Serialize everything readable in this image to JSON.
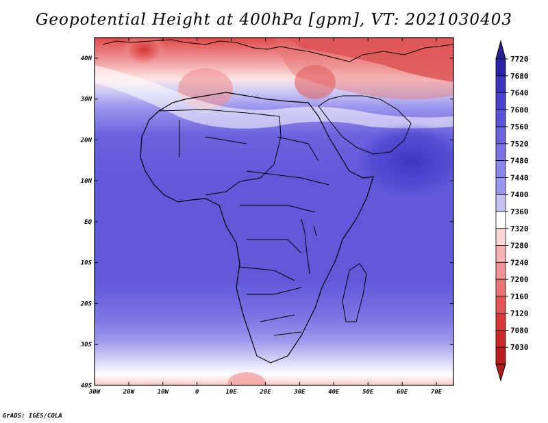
{
  "title": "Geopotential Height at 400hPa [gpm], VT: 2021030403",
  "credit": "GrADS: IGES/COLA",
  "map": {
    "lon_ticks": [
      "30W",
      "20W",
      "10W",
      "0",
      "10E",
      "20E",
      "30E",
      "40E",
      "50E",
      "60E",
      "70E"
    ],
    "lat_ticks": [
      "40N",
      "30N",
      "20N",
      "10N",
      "EQ",
      "10S",
      "20S",
      "30S",
      "40S"
    ],
    "lon_range": [
      -30,
      75
    ],
    "lat_range": [
      -40,
      45
    ]
  },
  "colorbar": {
    "levels": [
      "7720",
      "7680",
      "7640",
      "7600",
      "7560",
      "7520",
      "7480",
      "7440",
      "7400",
      "7360",
      "7320",
      "7280",
      "7240",
      "7200",
      "7160",
      "7120",
      "7080",
      "7030"
    ],
    "colors": [
      "#2a23a6",
      "#3b34bd",
      "#4b43cc",
      "#5a52d8",
      "#6a62de",
      "#7a73e3",
      "#8b85e8",
      "#9c97ec",
      "#c4c1f5",
      "#ffffff",
      "#fbd8d8",
      "#f5b4b4",
      "#ef9393",
      "#e87575",
      "#e25656",
      "#d83a3a",
      "#cc2a2a",
      "#b71d1d"
    ],
    "top_arrow_color": "#2a1f8e",
    "bottom_arrow_color": "#b01c1c"
  }
}
